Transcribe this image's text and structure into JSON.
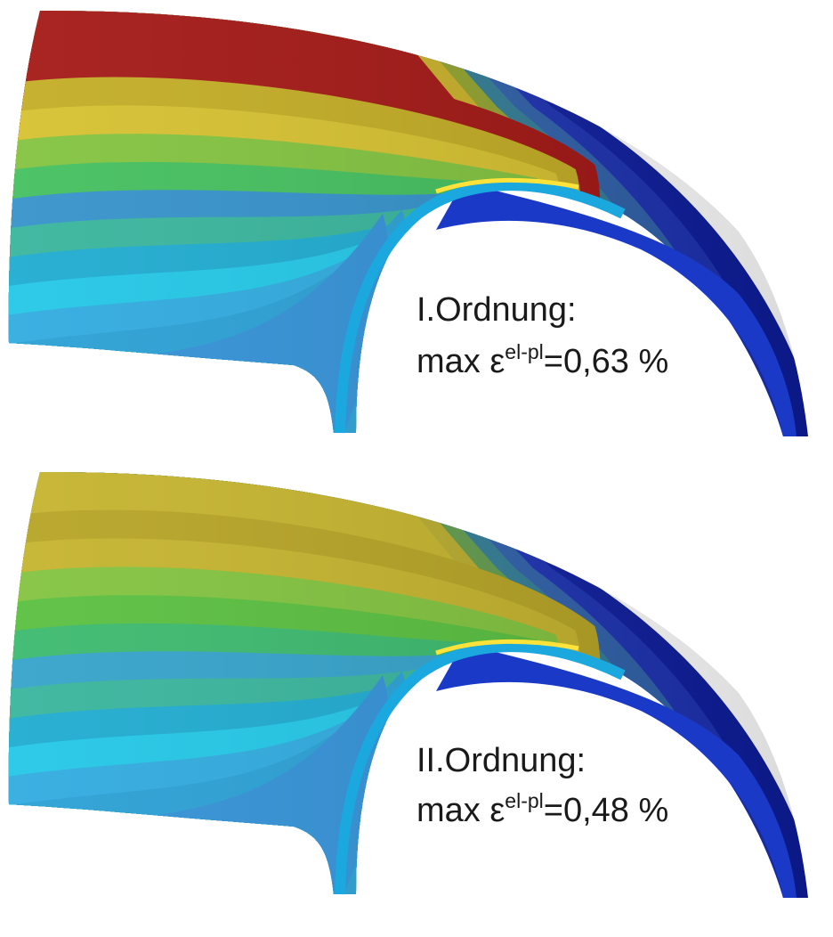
{
  "panels": [
    {
      "order_label": "I.Ordnung:",
      "value_prefix": "max ε",
      "value_superscript": "el-pl",
      "value_suffix": "=0,63 %",
      "outer_bands": [
        "#2e8fd6",
        "#249ed4",
        "#2aa9df",
        "#1cc6e6",
        "#18a9cf",
        "#33b39a",
        "#2f8fc9",
        "#3fbe5a",
        "#7fc23a",
        "#d6c02a",
        "#c2ab1f",
        "#a1120f"
      ],
      "right_bands": [
        "#0b1b9c",
        "#1a2fb0",
        "#2c5ea8",
        "#2f7a93",
        "#8fa02a",
        "#c7ae24",
        "#a1120f"
      ],
      "inner_bands": [
        "#0a1a9a",
        "#33d3e8",
        "#ffe23a",
        "#ff6a1a",
        "#e0c823",
        "#1aa8de"
      ],
      "colors": {
        "rim": "#1f6fc0",
        "inner_face": "#1a39c6",
        "right_face": "#0d1f9e"
      }
    },
    {
      "order_label": "II.Ordnung:",
      "value_prefix": "max ε",
      "value_superscript": "el-pl",
      "value_suffix": "=0,48 %",
      "outer_bands": [
        "#2e8fd6",
        "#249ed4",
        "#2aa9df",
        "#1cc6e6",
        "#18a9cf",
        "#33b39a",
        "#2fa0c9",
        "#36b86a",
        "#55be3a",
        "#7fc23a",
        "#c4b228",
        "#b5a21f"
      ],
      "right_bands": [
        "#0b1b9c",
        "#1a2fb0",
        "#2c5ea8",
        "#2f7a93",
        "#5f9a4a",
        "#b7aa2a",
        "#c4b228"
      ],
      "inner_bands": [
        "#0a1a9a",
        "#33d3e8",
        "#ffe23a",
        "#f2e640",
        "#3fc65a",
        "#1aa8de"
      ],
      "colors": {
        "rim": "#1f6fc0",
        "inner_face": "#1a39c6",
        "right_face": "#0d1f9e"
      }
    }
  ]
}
